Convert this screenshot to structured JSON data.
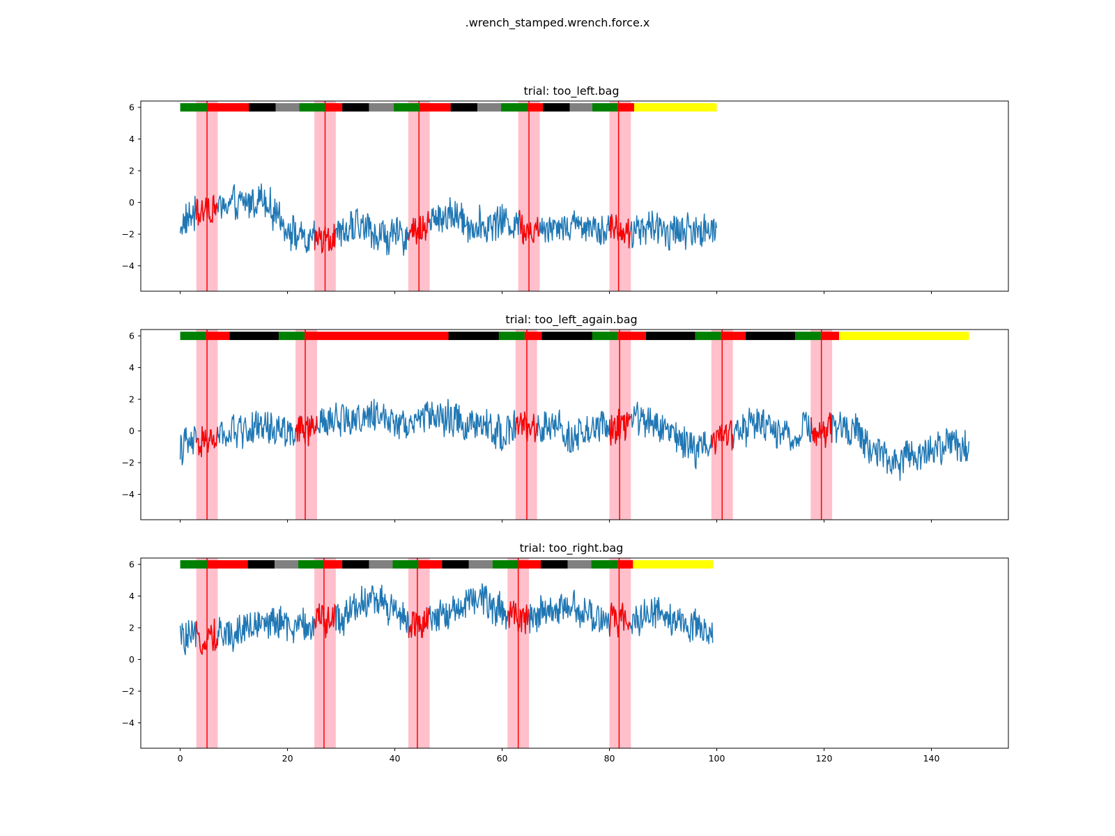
{
  "figure": {
    "title": ".wrench_stamped.wrench.force.x"
  },
  "chart_data": [
    {
      "type": "line",
      "title": "trial: too_left.bag",
      "xlim": [
        -7.35,
        154.35
      ],
      "ylim": [
        -5.6,
        6.4
      ],
      "yticks": [
        -4,
        -2,
        0,
        2,
        4,
        6
      ],
      "xticks": [
        0,
        20,
        40,
        60,
        80,
        100,
        120,
        140
      ],
      "show_xticklabels": false,
      "signal": {
        "x_end": 100,
        "color": "#1f77b4",
        "highlight_color": "#ff0000",
        "segments": [
          {
            "x": [
              0,
              3,
              6,
              9,
              12,
              15,
              18,
              21,
              24,
              27,
              30,
              33,
              36,
              39,
              42,
              45,
              48,
              51,
              54,
              57,
              60,
              63,
              66,
              69,
              72,
              75,
              78,
              81,
              84,
              87,
              90,
              93,
              96,
              100
            ],
            "y": [
              -1.5,
              -0.6,
              -0.4,
              -0.2,
              -0.1,
              0.3,
              -0.8,
              -1.9,
              -2.6,
              -2.1,
              -2.1,
              -1.4,
              -1.9,
              -2.2,
              -2.1,
              -1.6,
              -0.9,
              -0.8,
              -1.4,
              -1.5,
              -1.1,
              -1.4,
              -1.7,
              -1.4,
              -1.5,
              -1.4,
              -1.5,
              -1.7,
              -1.9,
              -1.6,
              -1.8,
              -1.7,
              -1.9,
              -1.7
            ]
          }
        ],
        "noise_amplitude": 0.95
      },
      "highlight_windows": [
        [
          3,
          7
        ],
        [
          25,
          29
        ],
        [
          42.5,
          46.5
        ],
        [
          63,
          67
        ],
        [
          80,
          84
        ]
      ],
      "event_lines": [
        5,
        27,
        44.5,
        65,
        81.7
      ],
      "phase_bar": {
        "y": 6,
        "segments": [
          {
            "start": 0,
            "end": 5,
            "color": "#008000"
          },
          {
            "start": 5,
            "end": 12.8,
            "color": "#ff0000"
          },
          {
            "start": 12.8,
            "end": 17.8,
            "color": "#000000"
          },
          {
            "start": 17.8,
            "end": 22.2,
            "color": "#808080"
          },
          {
            "start": 22.2,
            "end": 27,
            "color": "#008000"
          },
          {
            "start": 27,
            "end": 30.2,
            "color": "#ff0000"
          },
          {
            "start": 30.2,
            "end": 35.2,
            "color": "#000000"
          },
          {
            "start": 35.2,
            "end": 39.8,
            "color": "#808080"
          },
          {
            "start": 39.8,
            "end": 44.6,
            "color": "#008000"
          },
          {
            "start": 44.6,
            "end": 50.4,
            "color": "#ff0000"
          },
          {
            "start": 50.4,
            "end": 55.4,
            "color": "#000000"
          },
          {
            "start": 55.4,
            "end": 59.8,
            "color": "#808080"
          },
          {
            "start": 59.8,
            "end": 64.8,
            "color": "#008000"
          },
          {
            "start": 64.8,
            "end": 67.6,
            "color": "#ff0000"
          },
          {
            "start": 67.6,
            "end": 72.6,
            "color": "#000000"
          },
          {
            "start": 72.6,
            "end": 76.8,
            "color": "#808080"
          },
          {
            "start": 76.8,
            "end": 81.6,
            "color": "#008000"
          },
          {
            "start": 81.6,
            "end": 84.6,
            "color": "#ff0000"
          },
          {
            "start": 84.6,
            "end": 100,
            "color": "#ffff00"
          }
        ]
      }
    },
    {
      "type": "line",
      "title": "trial: too_left_again.bag",
      "xlim": [
        -7.35,
        154.35
      ],
      "ylim": [
        -5.6,
        6.4
      ],
      "yticks": [
        -4,
        -2,
        0,
        2,
        4,
        6
      ],
      "xticks": [
        0,
        20,
        40,
        60,
        80,
        100,
        120,
        140
      ],
      "show_xticklabels": false,
      "signal": {
        "x_end": 147,
        "color": "#1f77b4",
        "highlight_color": "#ff0000",
        "segments": [
          {
            "x": [
              0,
              3,
              6,
              9,
              12,
              15,
              18,
              21,
              24,
              27,
              30,
              33,
              36,
              39,
              42,
              45,
              48,
              51,
              54,
              57,
              60,
              63,
              66,
              69,
              72,
              75,
              78,
              81,
              84,
              87,
              90,
              93,
              96,
              99,
              102,
              105,
              108,
              111,
              114,
              117,
              120,
              123,
              126,
              129,
              132,
              135,
              138,
              141,
              144,
              147
            ],
            "y": [
              -1.0,
              -0.8,
              -0.6,
              -0.2,
              0.1,
              0.2,
              0.1,
              0.0,
              -0.1,
              0.6,
              0.8,
              0.7,
              0.9,
              0.8,
              0.6,
              0.8,
              0.9,
              0.7,
              0.4,
              0.2,
              -0.1,
              0.4,
              0.0,
              0.3,
              -0.2,
              -0.3,
              0.2,
              0.1,
              0.9,
              0.7,
              0.2,
              -0.5,
              -1.2,
              -0.4,
              -0.2,
              0.2,
              0.5,
              0.1,
              -0.3,
              0.1,
              -0.1,
              0.3,
              0.0,
              -1.2,
              -1.7,
              -1.8,
              -1.4,
              -0.9,
              -0.7,
              -1.3
            ]
          }
        ],
        "noise_amplitude": 0.95
      },
      "highlight_windows": [
        [
          3,
          7
        ],
        [
          21.5,
          25.5
        ],
        [
          62.5,
          66.5
        ],
        [
          80,
          84
        ],
        [
          99,
          103
        ],
        [
          117.5,
          121.5
        ]
      ],
      "event_lines": [
        5,
        23.3,
        64.6,
        81.9,
        101,
        119.5
      ],
      "phase_bar": {
        "y": 6,
        "segments": [
          {
            "start": 0,
            "end": 4.8,
            "color": "#008000"
          },
          {
            "start": 4.8,
            "end": 9.2,
            "color": "#ff0000"
          },
          {
            "start": 9.2,
            "end": 18.4,
            "color": "#000000"
          },
          {
            "start": 18.4,
            "end": 23.2,
            "color": "#008000"
          },
          {
            "start": 23.2,
            "end": 50.0,
            "color": "#ff0000"
          },
          {
            "start": 50.0,
            "end": 59.4,
            "color": "#000000"
          },
          {
            "start": 59.4,
            "end": 64.2,
            "color": "#008000"
          },
          {
            "start": 64.2,
            "end": 67.4,
            "color": "#ff0000"
          },
          {
            "start": 67.4,
            "end": 76.8,
            "color": "#000000"
          },
          {
            "start": 76.8,
            "end": 81.6,
            "color": "#008000"
          },
          {
            "start": 81.6,
            "end": 86.8,
            "color": "#ff0000"
          },
          {
            "start": 86.8,
            "end": 96.0,
            "color": "#000000"
          },
          {
            "start": 96.0,
            "end": 100.8,
            "color": "#008000"
          },
          {
            "start": 100.8,
            "end": 105.4,
            "color": "#ff0000"
          },
          {
            "start": 105.4,
            "end": 114.6,
            "color": "#000000"
          },
          {
            "start": 114.6,
            "end": 119.4,
            "color": "#008000"
          },
          {
            "start": 119.4,
            "end": 122.8,
            "color": "#ff0000"
          },
          {
            "start": 122.8,
            "end": 147,
            "color": "#ffff00"
          }
        ]
      }
    },
    {
      "type": "line",
      "title": "trial: too_right.bag",
      "xlim": [
        -7.35,
        154.35
      ],
      "ylim": [
        -5.6,
        6.4
      ],
      "yticks": [
        -4,
        -2,
        0,
        2,
        4,
        6
      ],
      "xticks": [
        0,
        20,
        40,
        60,
        80,
        100,
        120,
        140
      ],
      "xticklabels": [
        "0",
        "20",
        "40",
        "60",
        "80",
        "100",
        "120",
        "140"
      ],
      "show_xticklabels": true,
      "signal": {
        "x_end": 99.3,
        "color": "#1f77b4",
        "highlight_color": "#ff0000",
        "segments": [
          {
            "x": [
              0,
              3,
              6,
              9,
              12,
              15,
              18,
              21,
              24,
              27,
              30,
              33,
              36,
              39,
              42,
              45,
              48,
              51,
              54,
              57,
              60,
              63,
              66,
              69,
              72,
              75,
              78,
              81,
              84,
              87,
              90,
              93,
              96,
              99.3
            ],
            "y": [
              1.4,
              1.2,
              1.5,
              1.6,
              2.0,
              2.3,
              2.4,
              1.9,
              2.2,
              2.5,
              2.6,
              3.6,
              3.8,
              3.3,
              2.5,
              2.0,
              2.6,
              3.1,
              3.8,
              3.6,
              3.0,
              2.8,
              2.6,
              3.0,
              3.5,
              2.9,
              2.5,
              2.5,
              2.5,
              3.0,
              2.9,
              2.3,
              1.9,
              1.8
            ]
          }
        ],
        "noise_amplitude": 0.95
      },
      "highlight_windows": [
        [
          3,
          7
        ],
        [
          25,
          29
        ],
        [
          42.5,
          46.5
        ],
        [
          61,
          65
        ],
        [
          80,
          84
        ]
      ],
      "event_lines": [
        5,
        26.8,
        44.2,
        63,
        81.8
      ],
      "phase_bar": {
        "y": 6,
        "segments": [
          {
            "start": 0,
            "end": 5,
            "color": "#008000"
          },
          {
            "start": 5,
            "end": 12.6,
            "color": "#ff0000"
          },
          {
            "start": 12.6,
            "end": 17.6,
            "color": "#000000"
          },
          {
            "start": 17.6,
            "end": 22.0,
            "color": "#808080"
          },
          {
            "start": 22.0,
            "end": 26.8,
            "color": "#008000"
          },
          {
            "start": 26.8,
            "end": 30.2,
            "color": "#ff0000"
          },
          {
            "start": 30.2,
            "end": 35.2,
            "color": "#000000"
          },
          {
            "start": 35.2,
            "end": 39.6,
            "color": "#808080"
          },
          {
            "start": 39.6,
            "end": 44.4,
            "color": "#008000"
          },
          {
            "start": 44.4,
            "end": 48.8,
            "color": "#ff0000"
          },
          {
            "start": 48.8,
            "end": 53.8,
            "color": "#000000"
          },
          {
            "start": 53.8,
            "end": 58.2,
            "color": "#808080"
          },
          {
            "start": 58.2,
            "end": 63.0,
            "color": "#008000"
          },
          {
            "start": 63.0,
            "end": 67.2,
            "color": "#ff0000"
          },
          {
            "start": 67.2,
            "end": 72.2,
            "color": "#000000"
          },
          {
            "start": 72.2,
            "end": 76.6,
            "color": "#808080"
          },
          {
            "start": 76.6,
            "end": 81.6,
            "color": "#008000"
          },
          {
            "start": 81.6,
            "end": 84.4,
            "color": "#ff0000"
          },
          {
            "start": 84.4,
            "end": 99.3,
            "color": "#ffff00"
          }
        ]
      }
    }
  ]
}
